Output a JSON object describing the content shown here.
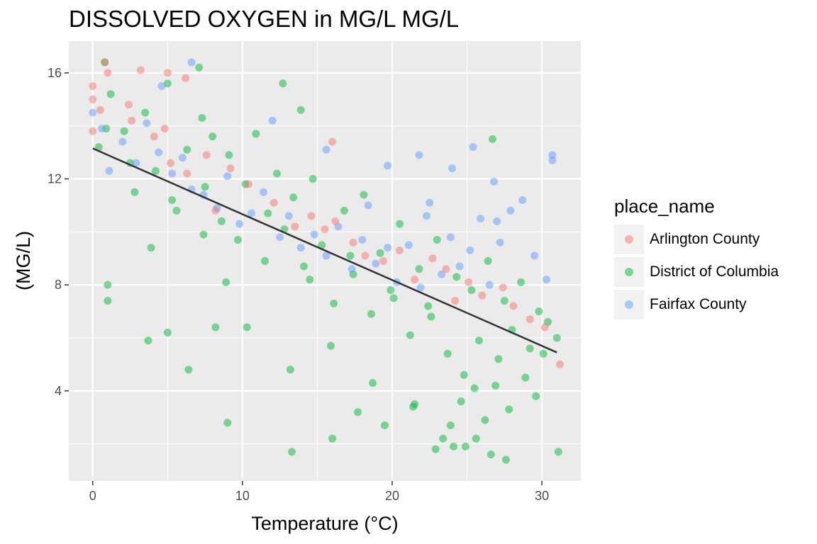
{
  "chart_data": {
    "type": "scatter",
    "title": "DISSOLVED OXYGEN in MG/L MG/L",
    "xlabel": "Temperature (°C)",
    "ylabel": "(MG/L)",
    "xlim": [
      -1.6,
      32.6
    ],
    "ylim": [
      0.6,
      17.2
    ],
    "x_ticks": [
      0,
      10,
      20,
      30
    ],
    "y_ticks": [
      4,
      8,
      12,
      16
    ],
    "grid": true,
    "legend_position": "right",
    "legend_title": "place_name",
    "series": [
      {
        "name": "Arlington County",
        "color": "#F8766D",
        "x": [
          0,
          0,
          0,
          0.5,
          1,
          2.4,
          2.6,
          3.2,
          4.1,
          4.8,
          5.2,
          6.3,
          7.6,
          8.2,
          9.2,
          10.4,
          12.1,
          13.5,
          14.6,
          15.5,
          16.2,
          17.4,
          18.2,
          19.4,
          20.5,
          21.5,
          22.7,
          23.6,
          24.2,
          25.1,
          26.0,
          27.4,
          28.1,
          29.2,
          30.2,
          31.2,
          5.0,
          16.0,
          0.8,
          6.2
        ],
        "y": [
          15.5,
          15.0,
          13.8,
          14.6,
          16.0,
          14.8,
          14.2,
          16.1,
          13.6,
          13.9,
          12.6,
          12.2,
          12.9,
          10.8,
          12.4,
          11.8,
          11.1,
          10.2,
          10.6,
          10.1,
          10.4,
          9.6,
          9.1,
          8.9,
          9.3,
          8.2,
          9.0,
          8.6,
          7.4,
          8.1,
          7.6,
          7.9,
          7.2,
          6.7,
          6.4,
          5.0,
          16.0,
          13.4,
          16.4,
          15.8
        ]
      },
      {
        "name": "District of Columbia",
        "color": "#00BA38",
        "x": [
          0.4,
          0.8,
          1.0,
          1.2,
          2.1,
          2.8,
          3.5,
          4.2,
          5.0,
          5.6,
          6.3,
          7.1,
          7.5,
          8.0,
          8.6,
          9.1,
          9.7,
          10.2,
          10.9,
          11.5,
          12.3,
          12.8,
          13.4,
          14.1,
          14.7,
          15.3,
          16.1,
          16.8,
          17.4,
          18.1,
          18.6,
          19.2,
          19.9,
          20.5,
          21.2,
          21.8,
          22.4,
          23.0,
          23.7,
          24.3,
          24.8,
          25.3,
          25.8,
          26.4,
          26.9,
          27.5,
          28.0,
          28.6,
          29.2,
          29.8,
          30.4,
          31.0,
          0.9,
          2.5,
          3.9,
          5.3,
          7.3,
          8.9,
          10.3,
          11.7,
          13.2,
          14.5,
          15.9,
          17.2,
          18.7,
          20.1,
          21.4,
          22.6,
          23.9,
          24.6,
          25.5,
          26.2,
          27.1,
          27.8,
          28.9,
          30.1,
          24.1,
          25.6,
          27.6,
          29.6,
          9.0,
          13.3,
          16.0,
          19.5,
          23.4,
          24.9,
          26.7,
          31.1,
          1.0,
          3.7,
          5.0,
          6.4,
          8.2,
          12.7,
          17.7,
          21.5,
          22.9,
          26.6,
          7.4,
          13.9
        ],
        "y": [
          13.2,
          16.4,
          7.4,
          15.2,
          13.8,
          11.5,
          14.5,
          12.3,
          15.6,
          10.8,
          13.1,
          16.2,
          11.7,
          13.6,
          10.4,
          12.9,
          9.7,
          11.8,
          13.7,
          8.9,
          12.2,
          10.1,
          11.3,
          8.7,
          12.0,
          9.5,
          7.3,
          10.8,
          8.4,
          11.4,
          6.9,
          9.2,
          7.8,
          10.3,
          6.1,
          8.6,
          7.2,
          9.7,
          5.4,
          8.3,
          4.6,
          7.8,
          5.9,
          8.9,
          4.2,
          7.4,
          6.3,
          8.1,
          5.6,
          7.0,
          6.6,
          6.0,
          13.9,
          12.6,
          9.4,
          11.2,
          14.3,
          8.1,
          6.4,
          10.7,
          4.8,
          8.2,
          5.7,
          9.1,
          4.3,
          7.5,
          3.4,
          6.8,
          2.7,
          3.6,
          4.1,
          2.9,
          5.2,
          3.3,
          4.5,
          5.4,
          1.9,
          2.2,
          1.4,
          3.8,
          2.8,
          1.7,
          2.2,
          2.7,
          2.2,
          1.9,
          13.5,
          1.7,
          8.0,
          5.9,
          6.2,
          4.8,
          6.4,
          15.6,
          3.2,
          3.5,
          1.8,
          1.6,
          9.9,
          14.6
        ]
      },
      {
        "name": "Fairfax County",
        "color": "#619CFF",
        "x": [
          0,
          0.6,
          1.1,
          2.0,
          2.9,
          3.6,
          4.4,
          5.3,
          6.0,
          6.6,
          7.4,
          8.3,
          9.0,
          9.8,
          10.6,
          11.4,
          12.5,
          13.1,
          13.9,
          14.8,
          15.6,
          16.4,
          17.3,
          18.0,
          18.9,
          19.7,
          20.3,
          21.1,
          21.9,
          22.5,
          23.3,
          23.9,
          24.5,
          25.2,
          25.9,
          26.5,
          27.2,
          27.9,
          28.7,
          29.5,
          30.3,
          30.7,
          15.6,
          19.7,
          21.8,
          24.0,
          25.4,
          26.8,
          30.7,
          6.6,
          12.0,
          4.6,
          18.4,
          22.3,
          27.0
        ],
        "y": [
          14.5,
          13.9,
          12.3,
          13.4,
          12.6,
          14.1,
          13.0,
          12.2,
          12.8,
          11.6,
          11.4,
          10.9,
          12.1,
          10.3,
          10.7,
          11.5,
          9.8,
          10.6,
          9.4,
          9.9,
          9.1,
          10.2,
          8.6,
          9.7,
          8.8,
          9.4,
          8.1,
          9.5,
          7.9,
          11.1,
          8.4,
          9.8,
          8.7,
          9.3,
          10.5,
          8.0,
          9.6,
          10.8,
          11.2,
          9.1,
          8.2,
          12.7,
          13.1,
          12.5,
          12.9,
          12.4,
          13.2,
          11.9,
          12.9,
          16.4,
          14.2,
          15.5,
          11.0,
          10.6,
          10.4
        ]
      }
    ],
    "trend_line": {
      "x": [
        0,
        31
      ],
      "y": [
        13.15,
        5.45
      ],
      "color": "#333333"
    }
  }
}
